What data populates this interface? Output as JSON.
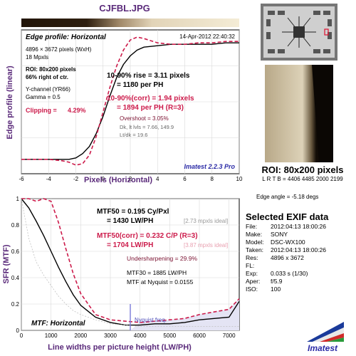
{
  "window": {
    "title": "CJFBL.JPG"
  },
  "colors": {
    "accent_purple": "#5a2a7a",
    "corrected_red": "#cc1a4a",
    "curve_black": "#000000",
    "imatest_blue": "#2a2aa6"
  },
  "chart_data": [
    {
      "type": "line",
      "title": "Edge profile: Horizontal",
      "xlabel": "Pixels (Horizontal)",
      "ylabel": "Edge profile (linear)",
      "xlim": [
        -6,
        10
      ],
      "xticks": [
        -6,
        -4,
        -2,
        0,
        2,
        4,
        6,
        8,
        10
      ],
      "grid": true,
      "x": [
        -6,
        -5,
        -4,
        -3,
        -2.5,
        -2,
        -1.5,
        -1,
        -0.5,
        0,
        0.5,
        1,
        1.5,
        2,
        2.5,
        3,
        4,
        5,
        6,
        7,
        8,
        9,
        10
      ],
      "series": [
        {
          "values": [
            0.1,
            0.1,
            0.1,
            0.1,
            0.1,
            0.11,
            0.14,
            0.19,
            0.28,
            0.4,
            0.54,
            0.67,
            0.76,
            0.82,
            0.86,
            0.88,
            0.89,
            0.9,
            0.9,
            0.9,
            0.9,
            0.91,
            0.91
          ]
        },
        {
          "values": [
            0.1,
            0.1,
            0.1,
            0.09,
            0.08,
            0.06,
            0.07,
            0.13,
            0.26,
            0.43,
            0.6,
            0.75,
            0.86,
            0.93,
            0.95,
            0.94,
            0.91,
            0.9,
            0.9,
            0.91,
            0.91,
            0.92,
            0.92
          ]
        }
      ],
      "info": {
        "date": "14-Apr-2012 22:40:32",
        "size": "4896 × 3672 pixels (WxH)",
        "mpxls": "18 Mpxls",
        "roi1": "ROI: 80x200 pixels",
        "roi2": "66% right of ctr.",
        "channel": "Y-channel (YR66)",
        "gamma": "Gamma = 0.5",
        "clipping_label": "Clipping =",
        "clipping_value": "4.29%",
        "rise1": "10-90% rise = 3.11 pixels",
        "rise2": "= 1180 per PH",
        "corr1": "10-90%(corr) = 1.94 pixels",
        "corr2": "= 1894 per PH (R=3)",
        "overshoot": "Overshoot = 3.05%",
        "dk": "Dk, lt lvls = 7.66, 149.9",
        "ltdk": "Lt/dk = 19.6",
        "version": "Imatest 2.2.3 Pro"
      }
    },
    {
      "type": "line",
      "title": "MTF: Horizontal",
      "xlabel": "Line widths per picture height (LW/PH)",
      "ylabel": "SFR (MTF)",
      "xlim": [
        0,
        7344
      ],
      "ylim": [
        0,
        1
      ],
      "xticks": [
        0,
        1000,
        2000,
        3000,
        4000,
        5000,
        6000,
        7000
      ],
      "yticks": [
        0,
        0.2,
        0.4,
        0.6,
        0.8,
        1
      ],
      "grid": true,
      "x": [
        0,
        250,
        500,
        750,
        1000,
        1250,
        1500,
        1750,
        2000,
        2500,
        3000,
        3500,
        4000,
        4500,
        5000,
        5500,
        6000,
        6500,
        7000,
        7344
      ],
      "series": [
        {
          "values": [
            1.0,
            0.93,
            0.83,
            0.72,
            0.6,
            0.48,
            0.37,
            0.27,
            0.19,
            0.1,
            0.06,
            0.04,
            0.04,
            0.05,
            0.05,
            0.06,
            0.08,
            0.09,
            0.1,
            0.22
          ]
        },
        {
          "values": [
            1.0,
            1.0,
            0.98,
            1.0,
            0.98,
            0.82,
            0.62,
            0.43,
            0.28,
            0.12,
            0.08,
            0.07,
            0.06,
            0.07,
            0.08,
            0.09,
            0.12,
            0.14,
            0.16,
            0.24
          ]
        },
        {
          "values": [
            1.0,
            0.7,
            0.52,
            0.42,
            0.34,
            0.26,
            0.2,
            0.15,
            0.12,
            0.08,
            0.05,
            0.04,
            0.03,
            0.03,
            0.03,
            0.03,
            0.03,
            0.03,
            0.03,
            0.03
          ]
        }
      ],
      "nyquist": {
        "x": 3672,
        "label": "Nyquist freq."
      },
      "info": {
        "mtf50_1": "MTF50 = 0.195 Cy/Pxl",
        "mtf50_2": "= 1430 LW/PH",
        "mtf50_ideal": "[2.73 mpxls ideal]",
        "mtf50c_1": "MTF50(corr) = 0.232 C/P (R=3)",
        "mtf50c_2": "= 1704 LW/PH",
        "mtf50c_ideal": "[3.87 mpxls ideal]",
        "undersharp": "Undersharpening = 29.9%",
        "mtf30": "MTF30 = 1885 LW/PH",
        "mtfnyq": "MTF at Nyquist = 0.0155"
      }
    }
  ],
  "roi": {
    "caption": "ROI: 80x200 pixels",
    "lrtb": "L R T B = 4406 4485  2000 2199",
    "edge_angle": "Edge angle = -5.18 degs"
  },
  "exif": {
    "title": "Selected EXIF data",
    "rows": [
      {
        "key": "File:",
        "value": "2012:04:13 18:00:26"
      },
      {
        "key": "Make:",
        "value": "SONY"
      },
      {
        "key": "Model:",
        "value": "DSC-WX100"
      },
      {
        "key": "Taken:",
        "value": "2012:04:13 18:00:26"
      },
      {
        "key": "Res:",
        "value": "4896 x 3672"
      },
      {
        "key": "FL:",
        "value": ""
      },
      {
        "key": "Exp:",
        "value": "0.033 s  (1/30)"
      },
      {
        "key": "Aper:",
        "value": "f/5.9"
      },
      {
        "key": "ISO:",
        "value": "100"
      }
    ]
  },
  "logo": {
    "text": "Imatest"
  }
}
